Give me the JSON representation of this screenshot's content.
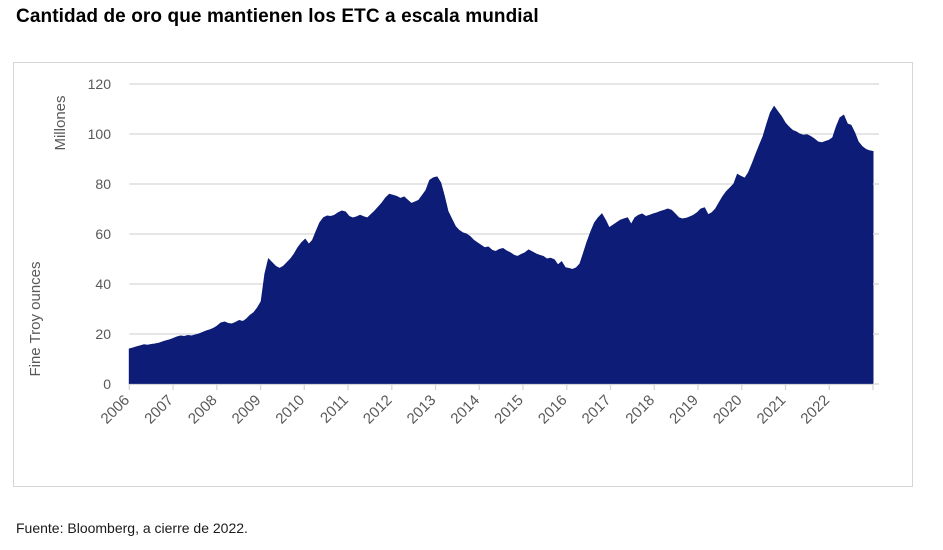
{
  "title": "Cantidad de oro que mantienen los ETC a escala mundial",
  "source": "Fuente: Bloomberg, a cierre de 2022.",
  "chart_data": {
    "type": "area",
    "title": "Cantidad de oro que mantienen los ETC a escala mundial",
    "ylabel_units": "Millones",
    "ylabel": "Fine Troy ounces",
    "xlabel": "",
    "ylim": [
      0,
      120
    ],
    "y_ticks": [
      0,
      20,
      40,
      60,
      80,
      100,
      120
    ],
    "x_tick_labels": [
      "2006",
      "2007",
      "2008",
      "2009",
      "2010",
      "2011",
      "2012",
      "2013",
      "2014",
      "2015",
      "2016",
      "2017",
      "2018",
      "2019",
      "2020",
      "2021",
      "2022"
    ],
    "x_start": "2006-01",
    "x_end": "2022-12",
    "frequency": "monthly",
    "grid": "horizontal",
    "legend": "none",
    "values": [
      14.0,
      14.4,
      14.9,
      15.3,
      15.7,
      15.5,
      15.8,
      16.0,
      16.3,
      16.8,
      17.3,
      17.7,
      18.2,
      18.8,
      19.2,
      19.0,
      19.4,
      19.2,
      19.6,
      20.0,
      20.6,
      21.2,
      21.7,
      22.3,
      23.2,
      24.4,
      24.8,
      24.2,
      24.0,
      24.6,
      25.4,
      25.0,
      26.0,
      27.5,
      28.6,
      30.5,
      33.0,
      44.0,
      50.0,
      48.5,
      47.0,
      46.2,
      47.0,
      48.5,
      50.0,
      52.0,
      54.5,
      56.5,
      57.9,
      55.9,
      57.5,
      61.0,
      64.5,
      66.5,
      67.2,
      67.0,
      67.5,
      68.5,
      69.2,
      68.8,
      67.0,
      66.4,
      66.8,
      67.5,
      66.9,
      66.4,
      67.8,
      69.2,
      70.8,
      72.5,
      74.5,
      75.9,
      75.5,
      75.0,
      74.2,
      74.8,
      73.5,
      72.2,
      72.8,
      73.5,
      75.5,
      77.5,
      81.5,
      82.5,
      82.8,
      80.5,
      75.0,
      69.0,
      66.0,
      63.0,
      61.5,
      60.5,
      60.0,
      59.0,
      57.5,
      56.5,
      55.5,
      54.5,
      54.8,
      53.5,
      53.0,
      53.8,
      54.2,
      53.2,
      52.5,
      51.5,
      51.0,
      51.8,
      52.5,
      53.6,
      52.8,
      52.0,
      51.5,
      51.0,
      50.0,
      50.3,
      49.7,
      47.6,
      48.9,
      46.5,
      46.2,
      45.8,
      46.5,
      48.0,
      52.5,
      57.0,
      61.0,
      64.5,
      66.5,
      68.0,
      65.5,
      62.5,
      63.5,
      64.5,
      65.5,
      66.0,
      66.5,
      63.8,
      66.5,
      67.5,
      68.0,
      67.0,
      67.5,
      68.0,
      68.5,
      69.0,
      69.5,
      70.0,
      69.5,
      68.0,
      66.5,
      66.0,
      66.3,
      66.8,
      67.5,
      68.5,
      70.0,
      70.5,
      67.7,
      68.5,
      70.0,
      72.5,
      75.0,
      77.0,
      78.5,
      80.0,
      83.9,
      83.0,
      82.3,
      84.5,
      88.0,
      91.9,
      95.5,
      99.0,
      104.0,
      108.5,
      111.0,
      109.0,
      107.0,
      104.5,
      102.9,
      101.5,
      100.9,
      100.0,
      99.5,
      99.7,
      99.0,
      98.0,
      96.8,
      96.5,
      97.0,
      97.5,
      98.5,
      103.0,
      106.5,
      107.5,
      104.0,
      103.5,
      100.5,
      96.8,
      95.0,
      93.9,
      93.3,
      93.0
    ]
  },
  "colors": {
    "area_fill": "#0d1c76",
    "grid_line": "#d6d6d6",
    "axis_text": "#595959",
    "card_border": "#d6d6d6",
    "title_text": "#000000",
    "footer_text": "#1a1a1a"
  }
}
